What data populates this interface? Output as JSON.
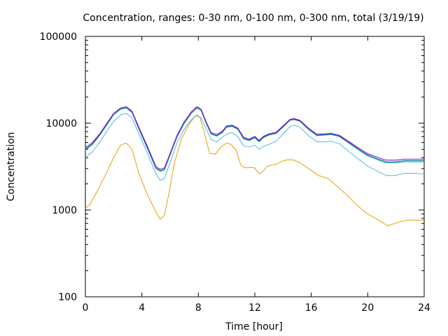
{
  "chart_data": {
    "type": "line",
    "title": "Concentration, ranges: 0-30 nm, 0-100 nm, 0-300 nm, total (3/19/19)",
    "xlabel": "Time [hour]",
    "ylabel": "Concentration",
    "xlim": [
      0,
      24
    ],
    "ylim": [
      100,
      100000
    ],
    "yscale": "log",
    "grid": false,
    "legend": "none",
    "xticks": [
      0,
      4,
      8,
      12,
      16,
      20,
      24
    ],
    "xtick_labels": [
      "0",
      "4",
      "8",
      "12",
      "16",
      "20",
      "24"
    ],
    "yticks": [
      100,
      1000,
      10000,
      100000
    ],
    "ytick_labels": [
      "100",
      "1000",
      "10000",
      "100000"
    ],
    "series": [
      {
        "color": "#e69f00",
        "x": [
          0,
          0.3,
          0.8,
          1.4,
          2.0,
          2.5,
          2.9,
          3.3,
          3.8,
          4.4,
          5.0,
          5.3,
          5.6,
          5.9,
          6.3,
          6.8,
          7.3,
          7.8,
          8.1,
          8.4,
          8.8,
          9.2,
          9.6,
          10.0,
          10.3,
          10.7,
          11.0,
          11.3,
          11.6,
          12.0,
          12.3,
          12.6,
          12.9,
          13.2,
          13.6,
          14.0,
          14.4,
          14.8,
          15.2,
          15.8,
          16.5,
          17.2,
          17.8,
          18.5,
          19.2,
          20.0,
          20.8,
          21.4,
          21.8,
          22.4,
          23.0,
          23.5,
          24.0
        ],
        "y": [
          1050,
          1150,
          1600,
          2500,
          4000,
          5600,
          5900,
          5000,
          2600,
          1500,
          950,
          780,
          870,
          1500,
          3500,
          6500,
          9500,
          12200,
          11800,
          8000,
          4500,
          4400,
          5300,
          5900,
          5700,
          4800,
          3300,
          3050,
          3100,
          3050,
          2600,
          2800,
          3200,
          3300,
          3400,
          3700,
          3800,
          3750,
          3500,
          3000,
          2500,
          2300,
          1900,
          1500,
          1150,
          900,
          760,
          660,
          690,
          740,
          770,
          760,
          760
        ]
      },
      {
        "color": "#56b4e9",
        "x": [
          0,
          0.5,
          1.0,
          1.5,
          2.0,
          2.5,
          2.9,
          3.3,
          3.8,
          4.4,
          5.0,
          5.3,
          5.6,
          6.0,
          6.5,
          7.0,
          7.5,
          7.9,
          8.2,
          8.5,
          8.9,
          9.3,
          9.7,
          10.0,
          10.4,
          10.8,
          11.2,
          11.6,
          12.0,
          12.3,
          12.6,
          13.0,
          13.5,
          14.0,
          14.5,
          14.8,
          15.2,
          15.8,
          16.4,
          17.0,
          17.4,
          18.0,
          18.6,
          19.3,
          20.0,
          20.7,
          21.3,
          22.0,
          22.6,
          23.2,
          24.0
        ],
        "y": [
          4000,
          4700,
          6000,
          8000,
          10500,
          12500,
          13000,
          11500,
          7500,
          4500,
          2600,
          2200,
          2300,
          3500,
          6000,
          8500,
          11000,
          12500,
          11500,
          9000,
          6500,
          6100,
          6900,
          7500,
          7800,
          7000,
          5500,
          5300,
          5600,
          5000,
          5400,
          5700,
          6200,
          7500,
          9200,
          9500,
          9000,
          7200,
          6100,
          6100,
          6200,
          5800,
          4800,
          3900,
          3200,
          2800,
          2500,
          2500,
          2650,
          2650,
          2600
        ]
      },
      {
        "color": "#009e73",
        "x": [
          0,
          0.5,
          1.0,
          1.5,
          2.0,
          2.5,
          2.9,
          3.3,
          3.8,
          4.4,
          5.0,
          5.3,
          5.6,
          6.0,
          6.5,
          7.0,
          7.5,
          7.9,
          8.2,
          8.5,
          8.9,
          9.3,
          9.7,
          10.0,
          10.4,
          10.8,
          11.2,
          11.6,
          12.0,
          12.3,
          12.6,
          13.0,
          13.5,
          14.0,
          14.5,
          14.8,
          15.2,
          15.8,
          16.4,
          17.0,
          17.4,
          18.0,
          18.6,
          19.3,
          20.0,
          20.7,
          21.3,
          22.0,
          22.6,
          23.2,
          24.0
        ],
        "y": [
          4900,
          5700,
          7200,
          9500,
          12500,
          14500,
          15000,
          13300,
          8500,
          5100,
          3000,
          2800,
          2900,
          4300,
          7000,
          10000,
          13000,
          15000,
          14000,
          10500,
          7500,
          7100,
          7800,
          9000,
          9200,
          8500,
          6600,
          6300,
          6800,
          6100,
          6800,
          7300,
          7600,
          9000,
          10800,
          11000,
          10500,
          8500,
          7200,
          7300,
          7400,
          7000,
          6000,
          5000,
          4200,
          3800,
          3500,
          3500,
          3600,
          3600,
          3600
        ]
      },
      {
        "color": "#0072b2",
        "x": [
          0,
          0.5,
          1.0,
          1.5,
          2.0,
          2.5,
          2.9,
          3.3,
          3.8,
          4.4,
          5.0,
          5.3,
          5.6,
          6.0,
          6.5,
          7.0,
          7.5,
          7.9,
          8.2,
          8.5,
          8.9,
          9.3,
          9.7,
          10.0,
          10.4,
          10.8,
          11.2,
          11.6,
          12.0,
          12.3,
          12.6,
          13.0,
          13.5,
          14.0,
          14.5,
          14.8,
          15.2,
          15.8,
          16.4,
          17.0,
          17.4,
          18.0,
          18.6,
          19.3,
          20.0,
          20.7,
          21.3,
          22.0,
          22.6,
          23.2,
          24.0
        ],
        "y": [
          5000,
          5800,
          7300,
          9600,
          12600,
          14600,
          15100,
          13400,
          8600,
          5200,
          3050,
          2850,
          2950,
          4350,
          7100,
          10100,
          13100,
          15100,
          14100,
          10600,
          7600,
          7200,
          7900,
          9100,
          9300,
          8600,
          6700,
          6400,
          6900,
          6200,
          6900,
          7400,
          7700,
          9100,
          10900,
          11100,
          10600,
          8600,
          7300,
          7400,
          7500,
          7100,
          6100,
          5100,
          4300,
          3900,
          3600,
          3600,
          3700,
          3700,
          3700
        ]
      },
      {
        "color": "#9400d3",
        "x": [
          0,
          0.5,
          1.0,
          1.5,
          2.0,
          2.5,
          2.9,
          3.3,
          3.8,
          4.4,
          5.0,
          5.3,
          5.6,
          6.0,
          6.5,
          7.0,
          7.5,
          7.9,
          8.2,
          8.5,
          8.9,
          9.3,
          9.7,
          10.0,
          10.4,
          10.8,
          11.2,
          11.6,
          12.0,
          12.3,
          12.6,
          13.0,
          13.5,
          14.0,
          14.5,
          14.8,
          15.2,
          15.8,
          16.4,
          17.0,
          17.4,
          18.0,
          18.6,
          19.3,
          20.0,
          20.7,
          21.3,
          22.0,
          22.6,
          23.2,
          24.0
        ],
        "y": [
          5200,
          6000,
          7500,
          9900,
          13000,
          15000,
          15500,
          13800,
          8900,
          5400,
          3150,
          2950,
          3050,
          4500,
          7300,
          10400,
          13500,
          15500,
          14500,
          10900,
          7800,
          7400,
          8100,
          9300,
          9500,
          8800,
          6900,
          6550,
          7050,
          6350,
          7050,
          7550,
          7850,
          9300,
          11100,
          11300,
          10800,
          8800,
          7450,
          7550,
          7650,
          7250,
          6250,
          5250,
          4450,
          4050,
          3750,
          3750,
          3850,
          3850,
          3850
        ]
      }
    ]
  }
}
